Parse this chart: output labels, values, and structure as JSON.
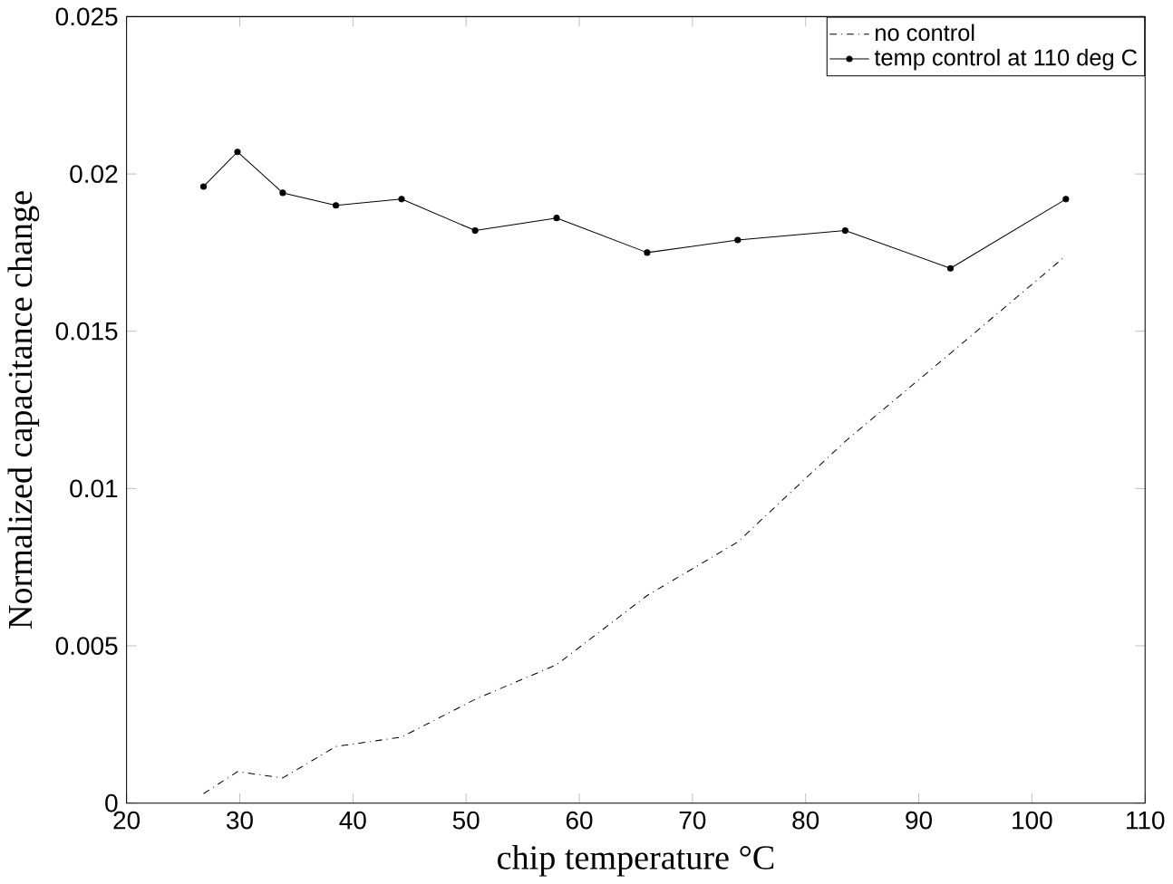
{
  "chart_data": {
    "type": "line",
    "xlabel": "chip temperature °C",
    "ylabel": "Normalized capacitance change",
    "x": [
      26.8,
      29.8,
      33.8,
      38.5,
      44.3,
      50.8,
      58,
      66,
      74,
      83.5,
      92.8,
      103
    ],
    "series": [
      {
        "name": "no control",
        "color": "#000000",
        "line_style": "dotted",
        "marker": "none",
        "values": [
          0.0003,
          0.001,
          0.0008,
          0.0018,
          0.0021,
          0.0033,
          0.0044,
          0.0066,
          0.0083,
          0.0115,
          0.0143,
          0.0174
        ]
      },
      {
        "name": "temp control at 110 deg C",
        "color": "#000000",
        "line_style": "solid",
        "marker": "circle",
        "values": [
          0.0196,
          0.0207,
          0.0194,
          0.019,
          0.0192,
          0.0182,
          0.0186,
          0.0175,
          0.0179,
          0.0182,
          0.017,
          0.0192
        ]
      }
    ],
    "xlim": [
      20,
      110
    ],
    "xticks": [
      20,
      30,
      40,
      50,
      60,
      70,
      80,
      90,
      100,
      110
    ],
    "ylim": [
      0,
      0.025
    ],
    "yticks": [
      0,
      0.005,
      0.01,
      0.015,
      0.02,
      0.025
    ],
    "grid": false,
    "legend": "top right"
  }
}
